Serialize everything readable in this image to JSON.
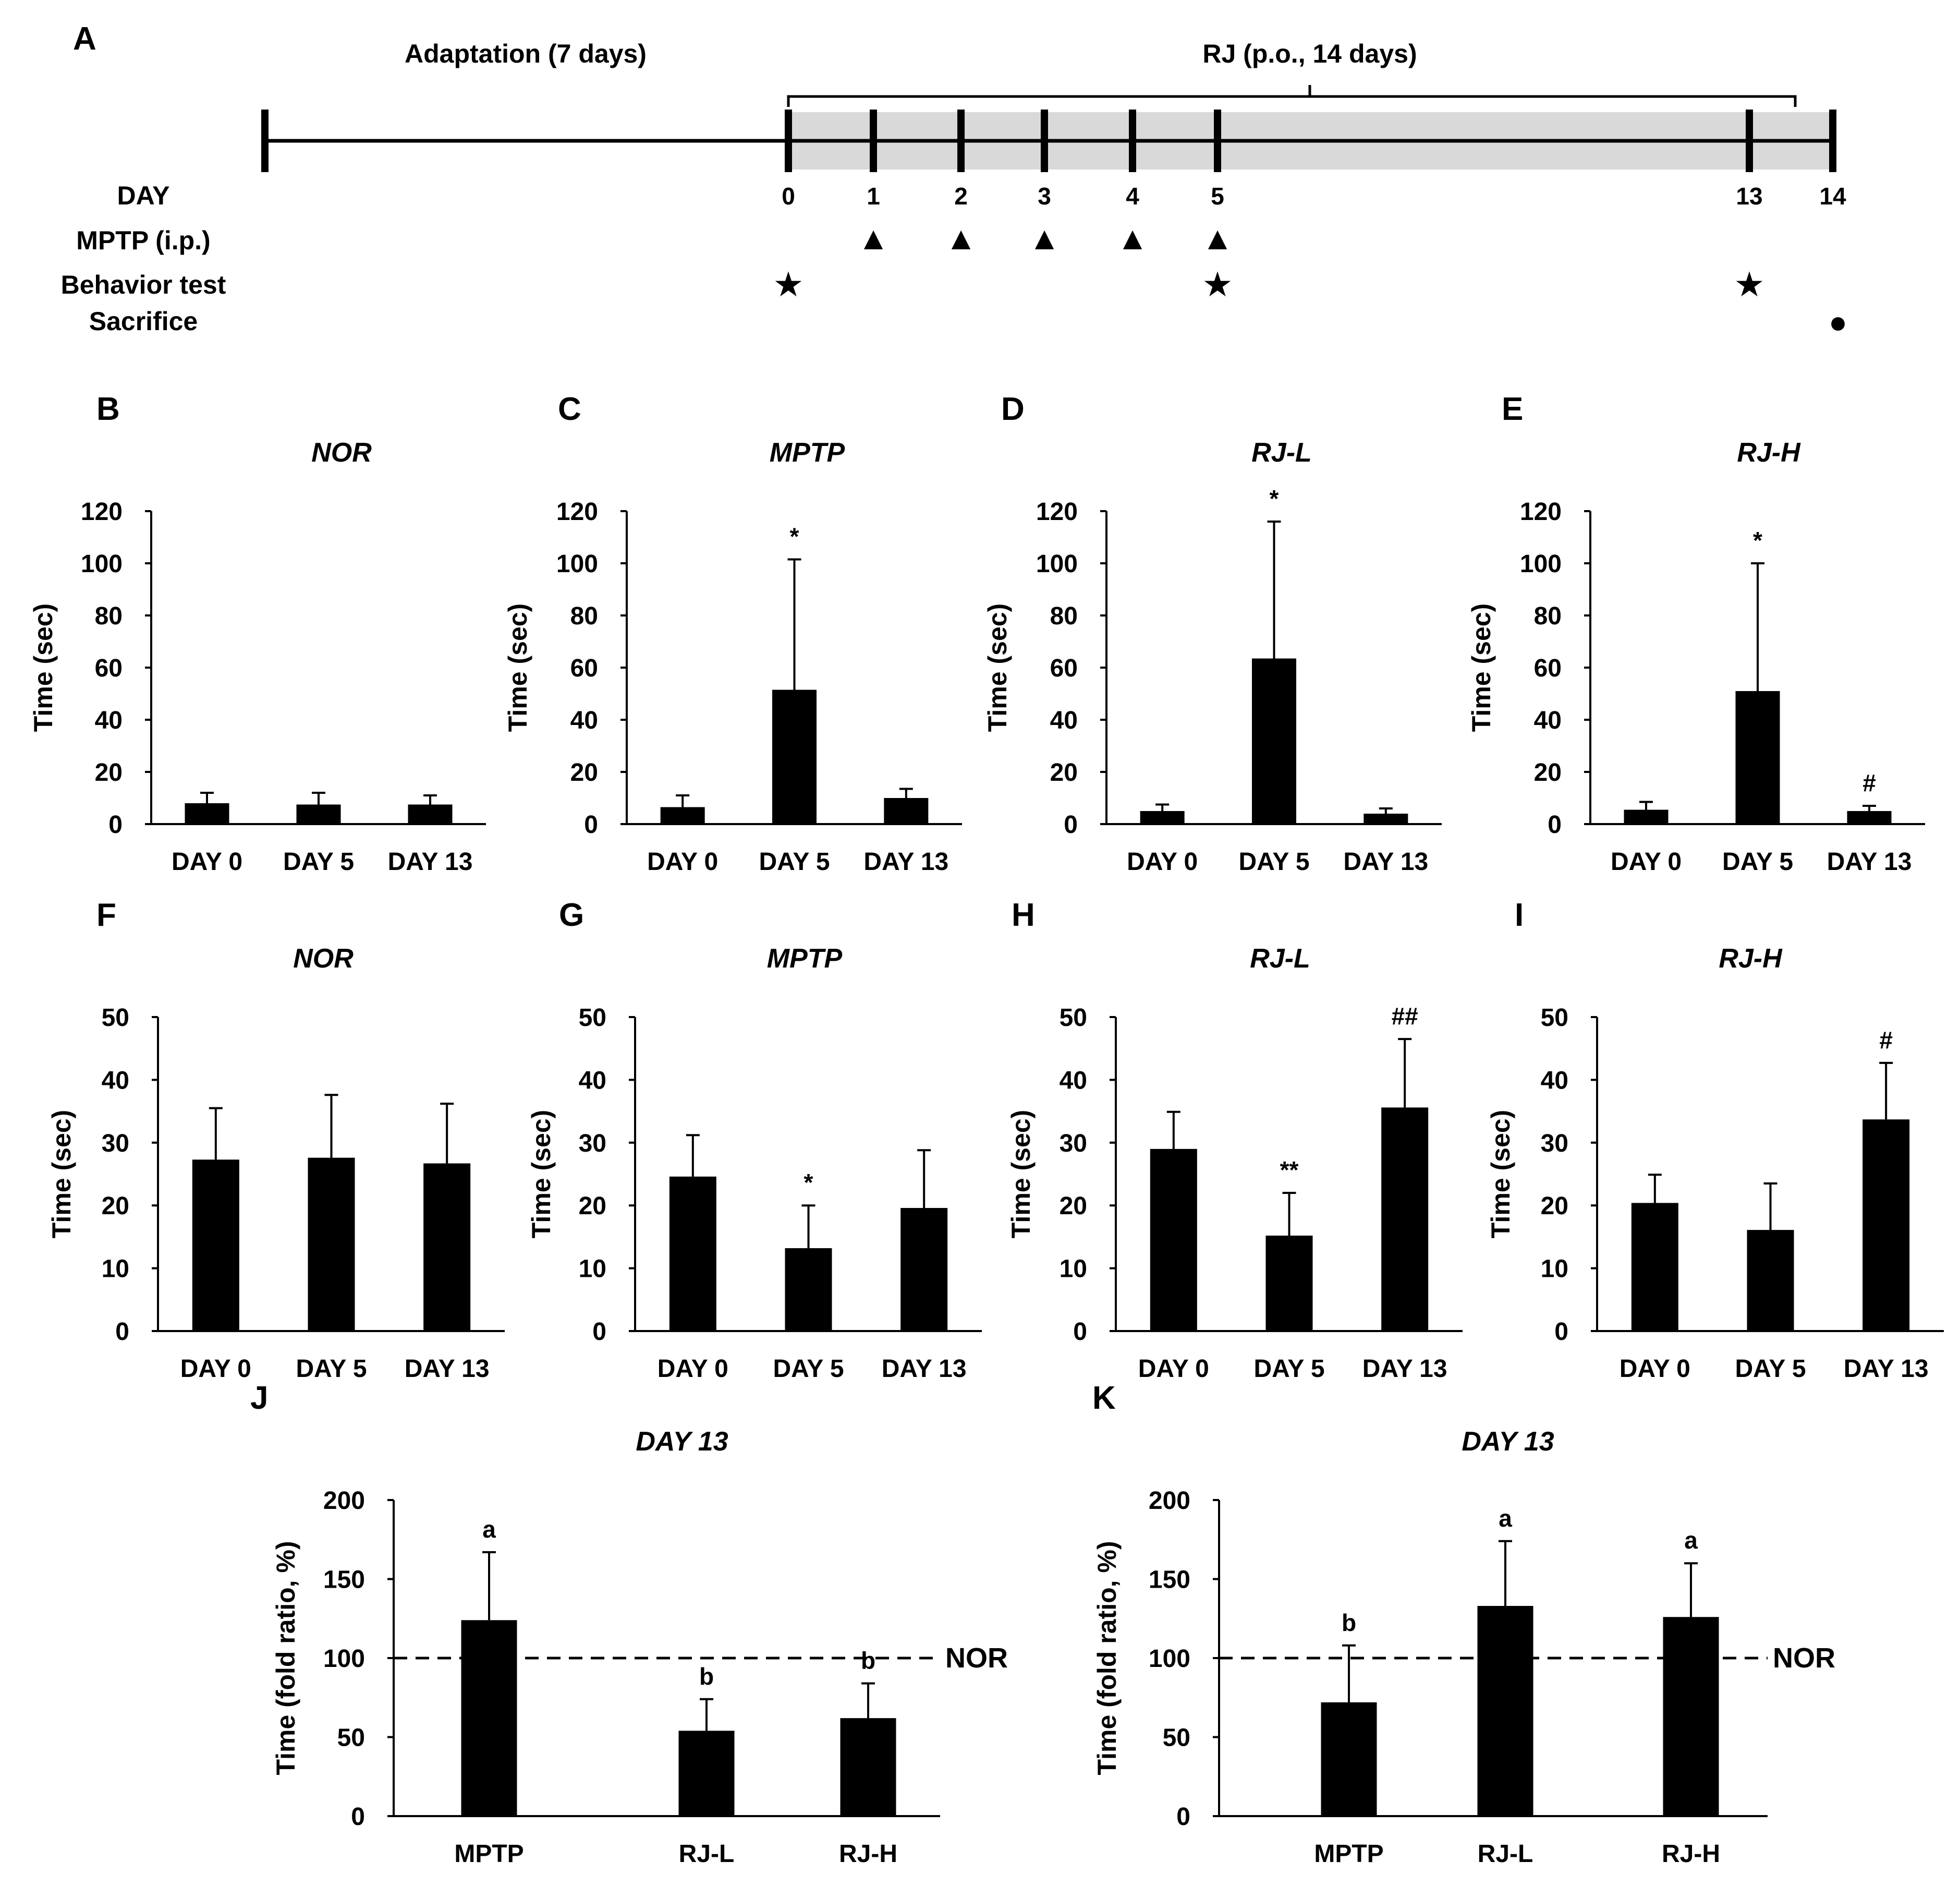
{
  "colors": {
    "bar": "#000000",
    "background": "#ffffff",
    "shade": "#d9d9d9"
  },
  "timeline": {
    "panel": "A",
    "adaptation_label": "Adaptation (7 days)",
    "rj_label": "RJ (p.o., 14 days)",
    "row_labels": {
      "day": "DAY",
      "mptp": "MPTP (i.p.)",
      "behavior": "Behavior test",
      "sacrifice": "Sacrifice"
    },
    "days": [
      "0",
      "1",
      "2",
      "3",
      "4",
      "5",
      "13",
      "14"
    ],
    "mptp_days": [
      "1",
      "2",
      "3",
      "4",
      "5"
    ],
    "behavior_days": [
      "0",
      "5",
      "13"
    ],
    "sacrifice_days": [
      "14"
    ],
    "glyphs": {
      "mptp": "▲",
      "behavior": "★",
      "sacrifice": "●"
    }
  },
  "chart_data": [
    {
      "panel": "B",
      "type": "bar",
      "title": "NOR",
      "ylabel": "Time (sec)",
      "ylim": [
        0,
        120
      ],
      "yticks": [
        0,
        20,
        40,
        60,
        80,
        100,
        120
      ],
      "categories": [
        "DAY 0",
        "DAY 5",
        "DAY 13"
      ],
      "values": [
        8,
        7.5,
        7.5
      ],
      "errors": [
        4,
        4.5,
        3.5
      ],
      "marks": [
        "",
        "",
        ""
      ]
    },
    {
      "panel": "C",
      "type": "bar",
      "title": "MPTP",
      "ylabel": "Time (sec)",
      "ylim": [
        0,
        120
      ],
      "yticks": [
        0,
        20,
        40,
        60,
        80,
        100,
        120
      ],
      "categories": [
        "DAY 0",
        "DAY 5",
        "DAY 13"
      ],
      "values": [
        6.5,
        51.5,
        10
      ],
      "errors": [
        4.5,
        50,
        3.5
      ],
      "marks": [
        "",
        "*",
        ""
      ]
    },
    {
      "panel": "D",
      "type": "bar",
      "title": "RJ-L",
      "ylabel": "Time (sec)",
      "ylim": [
        0,
        120
      ],
      "yticks": [
        0,
        20,
        40,
        60,
        80,
        100,
        120
      ],
      "categories": [
        "DAY 0",
        "DAY 5",
        "DAY 13"
      ],
      "values": [
        5,
        63.5,
        4
      ],
      "errors": [
        2.5,
        52.5,
        2
      ],
      "marks": [
        "",
        "*",
        ""
      ]
    },
    {
      "panel": "E",
      "type": "bar",
      "title": "RJ-H",
      "ylabel": "Time (sec)",
      "ylim": [
        0,
        120
      ],
      "yticks": [
        0,
        20,
        40,
        60,
        80,
        100,
        120
      ],
      "categories": [
        "DAY 0",
        "DAY 5",
        "DAY 13"
      ],
      "values": [
        5.5,
        51,
        5
      ],
      "errors": [
        3,
        49,
        2
      ],
      "marks": [
        "",
        "*",
        "#"
      ]
    },
    {
      "panel": "F",
      "type": "bar",
      "title": "NOR",
      "ylabel": "Time (sec)",
      "ylim": [
        0,
        50
      ],
      "yticks": [
        0,
        10,
        20,
        30,
        40,
        50
      ],
      "categories": [
        "DAY 0",
        "DAY 5",
        "DAY 13"
      ],
      "values": [
        27.3,
        27.6,
        26.7
      ],
      "errors": [
        8.2,
        10,
        9.5
      ],
      "marks": [
        "",
        "",
        ""
      ]
    },
    {
      "panel": "G",
      "type": "bar",
      "title": "MPTP",
      "ylabel": "Time (sec)",
      "ylim": [
        0,
        50
      ],
      "yticks": [
        0,
        10,
        20,
        30,
        40,
        50
      ],
      "categories": [
        "DAY 0",
        "DAY 5",
        "DAY 13"
      ],
      "values": [
        24.6,
        13.2,
        19.6
      ],
      "errors": [
        6.6,
        6.8,
        9.2
      ],
      "marks": [
        "",
        "*",
        ""
      ]
    },
    {
      "panel": "H",
      "type": "bar",
      "title": "RJ-L",
      "ylabel": "Time (sec)",
      "ylim": [
        0,
        50
      ],
      "yticks": [
        0,
        10,
        20,
        30,
        40,
        50
      ],
      "categories": [
        "DAY 0",
        "DAY 5",
        "DAY 13"
      ],
      "values": [
        29,
        15.2,
        35.6
      ],
      "errors": [
        5.9,
        6.8,
        10.9
      ],
      "marks": [
        "",
        "**",
        "##"
      ]
    },
    {
      "panel": "I",
      "type": "bar",
      "title": "RJ-H",
      "ylabel": "Time (sec)",
      "ylim": [
        0,
        50
      ],
      "yticks": [
        0,
        10,
        20,
        30,
        40,
        50
      ],
      "categories": [
        "DAY 0",
        "DAY 5",
        "DAY 13"
      ],
      "values": [
        20.4,
        16.1,
        33.7
      ],
      "errors": [
        4.5,
        7.4,
        9
      ],
      "marks": [
        "",
        "",
        "#"
      ]
    },
    {
      "panel": "J",
      "type": "bar",
      "title": "DAY 13",
      "ylabel": "Time (fold ratio, %)",
      "ylim": [
        0,
        200
      ],
      "yticks": [
        0,
        50,
        100,
        150,
        200
      ],
      "categories": [
        "MPTP",
        "RJ-L",
        "RJ-H"
      ],
      "values": [
        124,
        54,
        62
      ],
      "errors": [
        43,
        20,
        22
      ],
      "marks": [
        "a",
        "b",
        "b"
      ],
      "reference_line": {
        "value": 100,
        "label": "NOR"
      }
    },
    {
      "panel": "K",
      "type": "bar",
      "title": "DAY 13",
      "ylabel": "Time (fold ratio, %)",
      "ylim": [
        0,
        200
      ],
      "yticks": [
        0,
        50,
        100,
        150,
        200
      ],
      "categories": [
        "MPTP",
        "RJ-L",
        "RJ-H"
      ],
      "values": [
        72,
        133,
        126
      ],
      "errors": [
        36,
        41,
        34
      ],
      "marks": [
        "b",
        "a",
        "a"
      ],
      "reference_line": {
        "value": 100,
        "label": "NOR"
      }
    }
  ]
}
